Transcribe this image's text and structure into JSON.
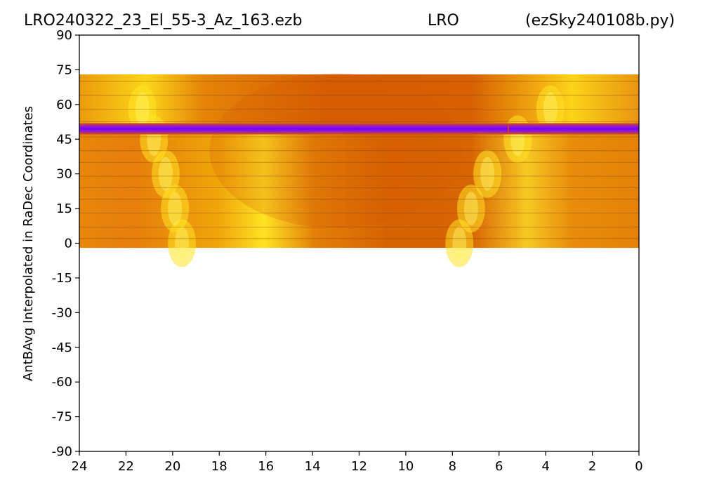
{
  "chart_data": {
    "type": "heatmap",
    "title_left": "LRO240322_23_El_55-3_Az_163.ezb",
    "title_center": "LRO",
    "title_right": "(ezSky240108b.py)",
    "xlabel": "",
    "ylabel": "AntBAvg Interpolated in RaDec Coordinates",
    "xlim": [
      24,
      0
    ],
    "ylim": [
      -90,
      90
    ],
    "x_ticks": [
      24,
      22,
      20,
      18,
      16,
      14,
      12,
      10,
      8,
      6,
      4,
      2,
      0
    ],
    "y_ticks": [
      90,
      75,
      60,
      45,
      30,
      15,
      0,
      -15,
      -30,
      -45,
      -60,
      -75,
      -90
    ],
    "data_extent": {
      "ra_from": 24,
      "ra_to": 0,
      "dec_from": -2,
      "dec_to": 73
    },
    "colormap": [
      "#7a00ff",
      "#c03a00",
      "#d95a00",
      "#e8860a",
      "#f4b40a",
      "#ffe01a",
      "#fff14a"
    ],
    "features": [
      {
        "name": "galactic plane band A",
        "ra_center_at_dec": [
          [
            0,
            19.6
          ],
          [
            15,
            19.9
          ],
          [
            30,
            20.3
          ],
          [
            45,
            20.8
          ],
          [
            58,
            21.3
          ]
        ]
      },
      {
        "name": "galactic plane band B",
        "ra_center_at_dec": [
          [
            0,
            7.7
          ],
          [
            15,
            7.2
          ],
          [
            30,
            6.5
          ],
          [
            45,
            5.2
          ],
          [
            58,
            3.8
          ]
        ]
      },
      {
        "name": "low-value strip",
        "dec": 49.5
      }
    ],
    "grid": false,
    "legend": "none"
  }
}
